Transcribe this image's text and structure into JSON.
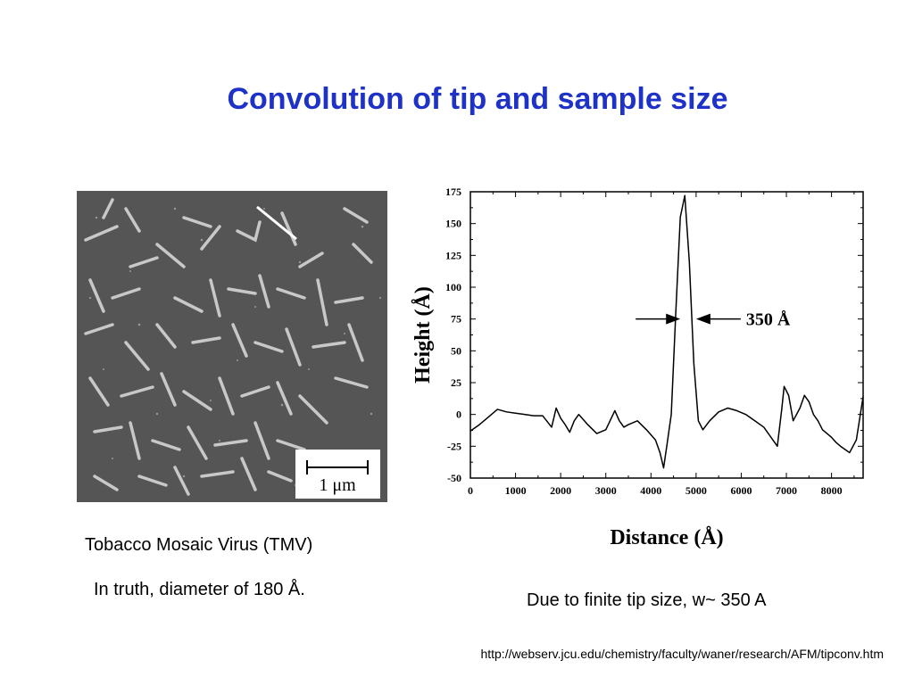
{
  "slide": {
    "title": "Convolution of tip and sample size",
    "caption_tmv": "Tobacco Mosaic Virus (TMV)",
    "caption_truth": "In truth, diameter of 180 Å.",
    "caption_tip": "Due to finite tip size, w~ 350 A",
    "source_url": "http://webserv.jcu.edu/chemistry/faculty/waner/research/AFM/tipconv.htm"
  },
  "afm_image": {
    "scalebar_label": "1 μm",
    "background_color": "#555555",
    "rod_color": "#c8c8c8"
  },
  "chart_data": {
    "type": "line",
    "xlabel": "Distance (Å)",
    "ylabel": "Height (Å)",
    "xlim": [
      0,
      8700
    ],
    "ylim": [
      -50,
      175
    ],
    "xticks": [
      0,
      1000,
      2000,
      3000,
      4000,
      5000,
      6000,
      7000,
      8000
    ],
    "yticks": [
      175,
      150,
      125,
      100,
      75,
      50,
      25,
      0,
      -25,
      -50
    ],
    "grid": false,
    "annotation": "350 Å",
    "annotation_y": 75,
    "annotation_arrows_x": [
      4650,
      5000
    ],
    "series": [
      {
        "x": [
          0,
          200,
          400,
          600,
          800,
          1000,
          1200,
          1400,
          1600,
          1800,
          1900,
          2000,
          2100,
          2200,
          2300,
          2400,
          2600,
          2800,
          3000,
          3200,
          3300,
          3400,
          3500,
          3700,
          3900,
          4100,
          4200,
          4280,
          4350,
          4450,
          4550,
          4650,
          4750,
          4850,
          4950,
          5050,
          5150,
          5300,
          5500,
          5700,
          5900,
          6100,
          6300,
          6500,
          6700,
          6800,
          6900,
          6950,
          7050,
          7150,
          7300,
          7400,
          7500,
          7600,
          7700,
          7800,
          7900,
          8000,
          8100,
          8200,
          8400,
          8550,
          8700
        ],
        "y": [
          -13,
          -8,
          -2,
          4,
          2,
          1,
          0,
          -1,
          -1,
          -10,
          5,
          -3,
          -8,
          -14,
          -5,
          0,
          -8,
          -15,
          -12,
          3,
          -5,
          -10,
          -8,
          -5,
          -12,
          -20,
          -30,
          -42,
          -25,
          0,
          80,
          155,
          172,
          120,
          40,
          -5,
          -12,
          -5,
          2,
          5,
          3,
          0,
          -5,
          -10,
          -20,
          -25,
          5,
          22,
          15,
          -5,
          5,
          15,
          10,
          0,
          -5,
          -12,
          -15,
          -18,
          -22,
          -25,
          -30,
          -20,
          14
        ]
      }
    ]
  }
}
